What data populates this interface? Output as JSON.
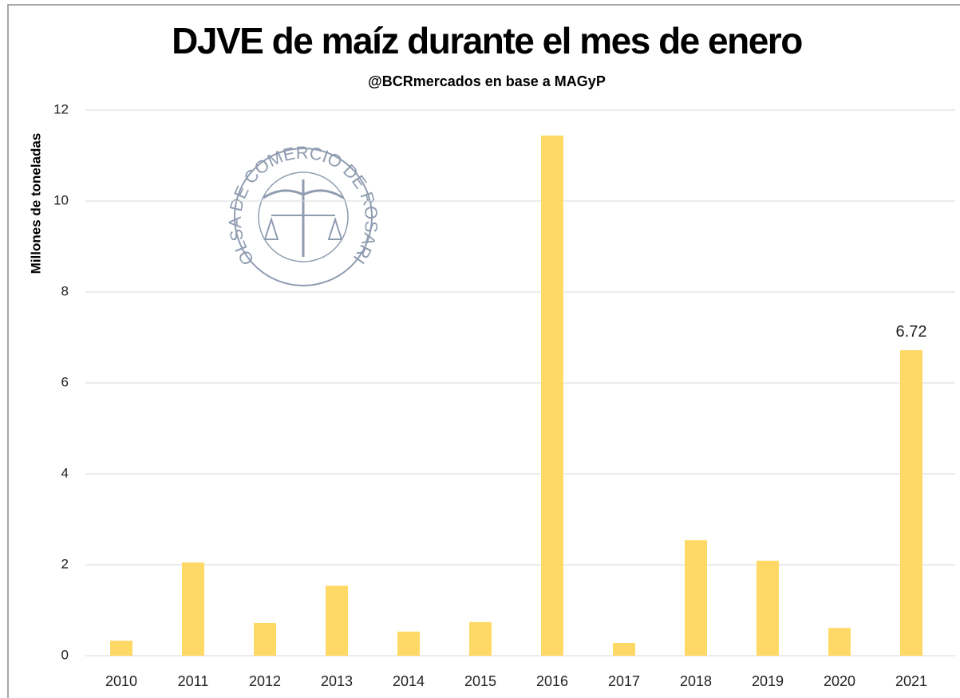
{
  "chart_data": {
    "type": "bar",
    "title": "DJVE de maíz durante el mes de enero",
    "subtitle": "@BCRmercados  en base a MAGyP",
    "y_label": "Millones de toneladas",
    "logo_text": "BOLSA DE COMERCIO DE ROSARIO",
    "categories": [
      "2010",
      "2011",
      "2012",
      "2013",
      "2014",
      "2015",
      "2016",
      "2017",
      "2018",
      "2019",
      "2020",
      "2021"
    ],
    "values": [
      0.33,
      2.05,
      0.72,
      1.54,
      0.53,
      0.74,
      11.44,
      0.28,
      2.54,
      2.09,
      0.61,
      6.72
    ],
    "value_labels": [
      null,
      null,
      null,
      null,
      null,
      null,
      null,
      null,
      null,
      null,
      null,
      "6.72"
    ],
    "color": "#ffd966",
    "ylim": [
      0,
      12
    ],
    "yticks": [
      0,
      2,
      4,
      6,
      8,
      10,
      12
    ],
    "grid": true
  }
}
